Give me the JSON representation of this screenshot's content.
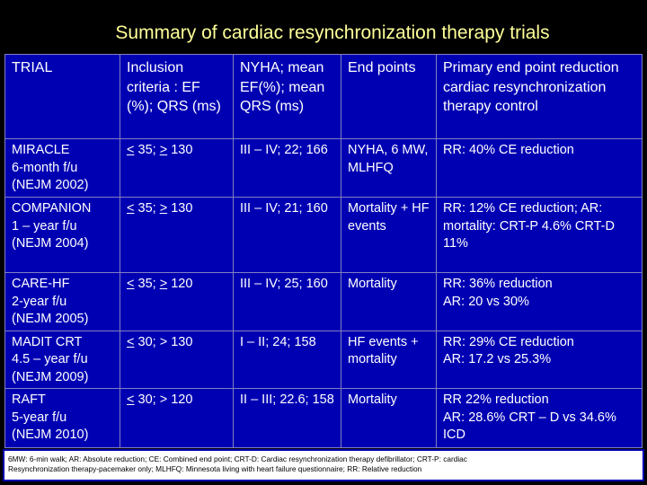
{
  "slide": {
    "title": "Summary of cardiac resynchronization therapy trials"
  },
  "table": {
    "headers": [
      "TRIAL",
      "Inclusion criteria : EF (%); QRS (ms)",
      "NYHA; mean EF(%); mean QRS (ms)",
      "End points",
      "Primary end point reduction cardiac resynchronization therapy control"
    ],
    "rows": [
      {
        "trial": "MIRACLE\n6-month f/u\n(NEJM 2002)",
        "ef_op": "<",
        "ef_val": "35",
        "qrs_op": ">",
        "qrs_val": "130",
        "nyha": "III – IV; 22; 166",
        "endpoints": "NYHA, 6 MW, MLHFQ",
        "result": "RR: 40% CE reduction"
      },
      {
        "trial": "COMPANION\n1 – year f/u\n(NEJM 2004)",
        "ef_op": "<",
        "ef_val": "35",
        "qrs_op": ">",
        "qrs_val": "130",
        "nyha": "III – IV; 21; 160",
        "endpoints": "Mortality + HF events",
        "result": "RR: 12% CE reduction; AR: mortality: CRT-P 4.6% CRT-D 11%"
      },
      {
        "trial": "CARE-HF\n2-year f/u\n(NEJM 2005)",
        "ef_op": "<",
        "ef_val": "35",
        "qrs_op": ">",
        "qrs_val": "120",
        "nyha": "III – IV; 25; 160",
        "endpoints": "Mortality",
        "result": "RR: 36% reduction\nAR: 20 vs 30%"
      },
      {
        "trial": "MADIT CRT\n4.5 – year f/u\n(NEJM 2009)",
        "ef_op": "<",
        "ef_val": "30",
        "qrs_op": ">",
        "qrs_val": "130",
        "nyha": "I – II; 24; 158",
        "endpoints": "HF events + mortality",
        "result": "RR: 29% CE reduction\nAR: 17.2 vs 25.3%"
      },
      {
        "trial": "RAFT\n5-year f/u\n(NEJM 2010)",
        "ef_op": "<",
        "ef_val": "30",
        "qrs_op": ">",
        "qrs_val": "120",
        "nyha": "II – III; 22.6; 158",
        "endpoints": "Mortality",
        "result": "RR 22% reduction\nAR: 28.6% CRT – D vs 34.6% ICD"
      }
    ]
  },
  "footnote": {
    "text": "6MW: 6-min walk; AR: Absolute reduction; CE: Combined end point; CRT-D: Cardiac resynchronization therapy defibrillator; CRT-P: cardiac\nResynchronization therapy-pacemaker only; MLHFQ: Minnesota living with heart failure questionnaire; RR: Relative reduction"
  },
  "colors": {
    "background": "#000000",
    "title": "#ffff99",
    "table_fill": "#0000b3",
    "text": "#ffffff"
  }
}
